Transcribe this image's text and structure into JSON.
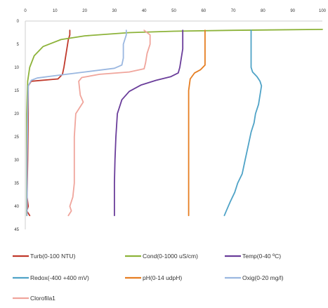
{
  "chart_data": {
    "type": "line",
    "orientation": "vertical-profile",
    "x_axis": {
      "position": "top",
      "range": [
        0,
        100
      ],
      "ticks": [
        "0",
        "10",
        "20",
        "30",
        "40",
        "50",
        "60",
        "70",
        "80",
        "90",
        "100"
      ]
    },
    "y_axis": {
      "reversed": true,
      "range": [
        0,
        45
      ],
      "ticks": [
        "0",
        "5",
        "10",
        "15",
        "20",
        "25",
        "30",
        "35",
        "40",
        "45"
      ]
    },
    "grid": false,
    "legend_position": "bottom",
    "series": [
      {
        "name": "Turb(0-100 NTU)",
        "color": "#c0392b",
        "points": [
          [
            15,
            2
          ],
          [
            15,
            3
          ],
          [
            14.5,
            4
          ],
          [
            14,
            6
          ],
          [
            13.5,
            8
          ],
          [
            13,
            10
          ],
          [
            12.5,
            11.5
          ],
          [
            11,
            12.5
          ],
          [
            2,
            13
          ],
          [
            1,
            14
          ],
          [
            1,
            20
          ],
          [
            0.8,
            30
          ],
          [
            0.6,
            38
          ],
          [
            1,
            40
          ],
          [
            0.5,
            41
          ],
          [
            1.5,
            42
          ]
        ]
      },
      {
        "name": "Cond(0-1000 uS/cm)",
        "color": "#8db33a",
        "points": [
          [
            100,
            1.8
          ],
          [
            70,
            2
          ],
          [
            50,
            2.2
          ],
          [
            35,
            2.5
          ],
          [
            20,
            3.2
          ],
          [
            12,
            4
          ],
          [
            6,
            5.5
          ],
          [
            3,
            7.5
          ],
          [
            1.5,
            10
          ],
          [
            0.8,
            13
          ],
          [
            0.5,
            20
          ],
          [
            0.5,
            30
          ],
          [
            0.5,
            42
          ]
        ]
      },
      {
        "name": "Temp(0-40 ºC)",
        "color": "#6a3d9a",
        "points": [
          [
            53,
            2
          ],
          [
            53,
            4
          ],
          [
            53,
            6
          ],
          [
            52.5,
            8
          ],
          [
            52,
            10
          ],
          [
            51.5,
            11.2
          ],
          [
            49,
            12
          ],
          [
            44,
            12.8
          ],
          [
            39,
            13.8
          ],
          [
            35,
            15.2
          ],
          [
            32.5,
            17
          ],
          [
            31,
            20
          ],
          [
            30.5,
            25
          ],
          [
            30.2,
            30
          ],
          [
            30,
            35
          ],
          [
            30,
            42
          ]
        ]
      },
      {
        "name": "Redox(-400 +400 mV)",
        "color": "#4fa3c7",
        "points": [
          [
            76,
            2
          ],
          [
            76,
            4
          ],
          [
            76,
            8
          ],
          [
            76,
            10
          ],
          [
            76.5,
            11
          ],
          [
            78,
            12
          ],
          [
            79,
            13
          ],
          [
            79.5,
            14
          ],
          [
            79,
            16
          ],
          [
            78.5,
            18
          ],
          [
            77.5,
            20
          ],
          [
            77,
            22
          ],
          [
            76,
            24
          ],
          [
            75,
            27
          ],
          [
            74,
            30
          ],
          [
            73,
            33
          ],
          [
            71.5,
            35
          ],
          [
            70.5,
            37
          ],
          [
            69,
            39
          ],
          [
            68,
            40.5
          ],
          [
            67,
            42
          ]
        ]
      },
      {
        "name": "pH(0-14 udpH)",
        "color": "#e67e22",
        "points": [
          [
            60.5,
            2
          ],
          [
            60.5,
            4
          ],
          [
            60.5,
            6
          ],
          [
            60.5,
            8
          ],
          [
            60.5,
            9.5
          ],
          [
            59,
            10.5
          ],
          [
            57,
            11.2
          ],
          [
            55.5,
            12.5
          ],
          [
            55,
            15
          ],
          [
            55,
            20
          ],
          [
            55,
            30
          ],
          [
            55,
            40
          ],
          [
            55,
            42
          ]
        ]
      },
      {
        "name": "Oxig(0-20 mg/l)",
        "color": "#9ab7e0",
        "points": [
          [
            34,
            2
          ],
          [
            34,
            3
          ],
          [
            33.5,
            4
          ],
          [
            33,
            5
          ],
          [
            33,
            8
          ],
          [
            32.5,
            9.5
          ],
          [
            30,
            10.2
          ],
          [
            20,
            11
          ],
          [
            10,
            11.8
          ],
          [
            4,
            12.3
          ],
          [
            2,
            12.8
          ],
          [
            1,
            14
          ],
          [
            0.8,
            20
          ],
          [
            0.6,
            30
          ],
          [
            0.6,
            42
          ]
        ]
      },
      {
        "name": "Clorofila1",
        "color": "#f0a59c",
        "points": [
          [
            40,
            2
          ],
          [
            42,
            3
          ],
          [
            42,
            5
          ],
          [
            41,
            7
          ],
          [
            40.5,
            9
          ],
          [
            40,
            10.3
          ],
          [
            35,
            11
          ],
          [
            25,
            11.5
          ],
          [
            19,
            12.2
          ],
          [
            18,
            13
          ],
          [
            18.5,
            16
          ],
          [
            19.5,
            17.5
          ],
          [
            17,
            20
          ],
          [
            16.5,
            25
          ],
          [
            16.5,
            30
          ],
          [
            16.5,
            35
          ],
          [
            16,
            38
          ],
          [
            15,
            40
          ],
          [
            15.5,
            41
          ],
          [
            14.5,
            42
          ]
        ]
      }
    ]
  }
}
